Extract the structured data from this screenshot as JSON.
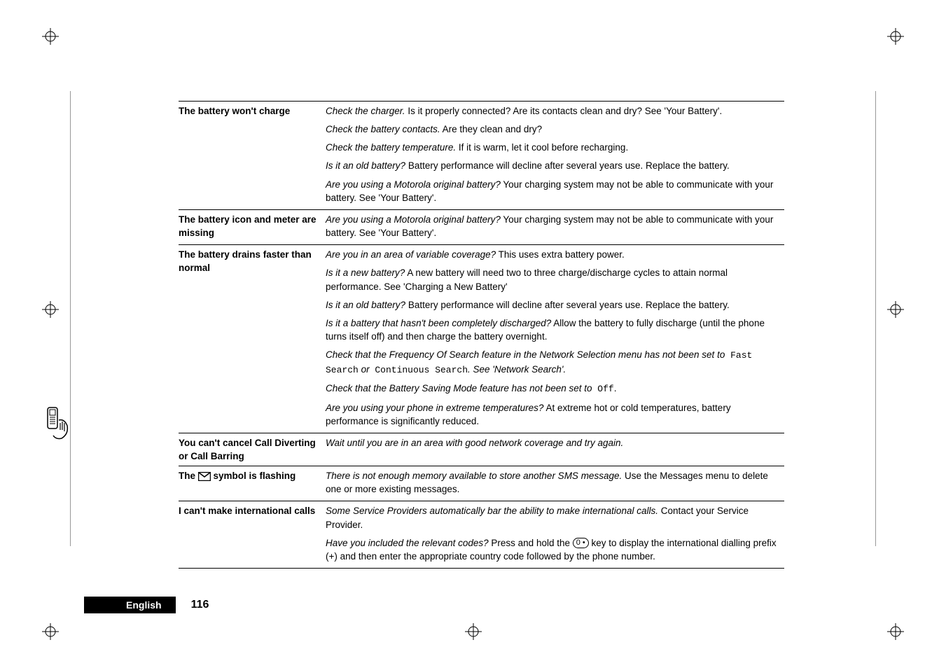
{
  "page": {
    "language_label": "English",
    "page_number": "116"
  },
  "rows": [
    {
      "heading": "The battery won't charge",
      "paras": [
        {
          "ital": "Check the charger.",
          "rest": " Is it properly connected? Are its contacts clean and dry? See 'Your Battery'."
        },
        {
          "ital": "Check the battery contacts.",
          "rest": " Are they clean and dry?"
        },
        {
          "ital": "Check the battery temperature.",
          "rest": " If it is warm, let it cool before recharging."
        },
        {
          "ital": "Is it an old battery?",
          "rest": " Battery performance will decline after several years use. Replace the battery."
        },
        {
          "ital": "Are you using a Motorola original battery?",
          "rest": " Your charging system may not be able to communicate with your battery. See 'Your Battery'."
        }
      ]
    },
    {
      "heading": "The battery icon and meter are missing",
      "paras": [
        {
          "ital": "Are you using a Motorola original battery?",
          "rest": " Your charging system may not be able to communicate with your battery. See 'Your Battery'."
        }
      ]
    },
    {
      "heading": "The battery drains faster than normal",
      "paras": [
        {
          "ital": "Are you in an area of variable coverage?",
          "rest": " This uses extra battery power."
        },
        {
          "ital": "Is it a new battery?",
          "rest": " A new battery will need two to three charge/discharge cycles to attain normal performance. See 'Charging a New Battery'"
        },
        {
          "ital": "Is it an old battery?",
          "rest": " Battery performance will decline after several years use. Replace the battery."
        },
        {
          "ital": "Is it a battery that hasn't been completely discharged?",
          "rest": " Allow the battery to fully discharge (until the phone turns itself off) and then charge the battery overnight."
        },
        {
          "ital": "Check that the Frequency Of Search feature in the Network Selection menu has not been set to",
          "mono1": " Fast Search",
          "mid": " or",
          "mono2": " Continuous Search",
          "post": ". See 'Network Search'.",
          "special": "freq"
        },
        {
          "ital": "Check that the Battery Saving Mode feature has not been set to",
          "mono1": " Off",
          "post": ".",
          "special": "saving"
        },
        {
          "ital": "Are you using your phone in extreme temperatures?",
          "rest": " At extreme hot or cold temperatures, battery performance is significantly reduced."
        }
      ]
    },
    {
      "heading": "You can't cancel Call Diverting or Call Barring",
      "paras": [
        {
          "ital": "Wait until you are in an area with good network coverage and try again.",
          "rest": ""
        }
      ]
    },
    {
      "heading_pre": "The ",
      "heading_post": " symbol is flashing",
      "icon": "envelope",
      "paras": [
        {
          "ital": "There is not enough memory available to store another SMS message.",
          "rest": " Use the Messages menu to delete one or more existing messages."
        }
      ]
    },
    {
      "heading": "I can't make international calls",
      "paras": [
        {
          "ital": "Some Service Providers automatically bar the ability to make international calls.",
          "rest": " Contact your Service Provider."
        },
        {
          "ital": "Have you included the relevant codes?",
          "rest_pre": " Press and hold the ",
          "key": "0 •",
          "rest_post": " key to display the international dialling prefix (+) and then enter the appropriate country code followed by the phone number.",
          "special": "key"
        }
      ]
    }
  ]
}
